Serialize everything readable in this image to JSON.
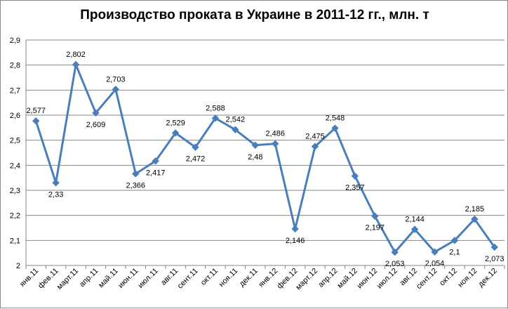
{
  "chart_data": {
    "type": "line",
    "title": "Производство проката в Украине в 2011-12 гг., млн. т",
    "xlabel": "",
    "ylabel": "",
    "ylim": [
      2,
      2.9
    ],
    "yticks": [
      "2",
      "2,1",
      "2,2",
      "2,3",
      "2,4",
      "2,5",
      "2,6",
      "2,7",
      "2,8",
      "2,9"
    ],
    "grid": "horizontal",
    "legend": "none",
    "line_color": "#4A7EBB",
    "categories": [
      "янв.11",
      "фев.11",
      "март.11",
      "апр.11",
      "май.11",
      "июн.11",
      "июл.11",
      "авг.11",
      "сент.11",
      "окт.11",
      "ноя.11",
      "дек.11",
      "янв.12",
      "фев.12",
      "март.12",
      "апр.12",
      "май.12",
      "июн.12",
      "июл.12",
      "авг.12",
      "сент.12",
      "окт.12",
      "ноя.12",
      "дек.12"
    ],
    "values": [
      2.577,
      2.33,
      2.802,
      2.609,
      2.703,
      2.366,
      2.417,
      2.529,
      2.472,
      2.588,
      2.542,
      2.48,
      2.486,
      2.146,
      2.475,
      2.548,
      2.357,
      2.197,
      2.053,
      2.144,
      2.054,
      2.1,
      2.185,
      2.073
    ],
    "data_labels": {
      "0": "2,577",
      "1": "2,33",
      "2": "2,802",
      "3": "2,609",
      "4": "2,703",
      "5": "2,366",
      "6": "2,417",
      "7": "2,529",
      "8": "2,472",
      "9": "2,588",
      "10": "2,542",
      "11": "2,48",
      "12": "2,486",
      "13": "2,146",
      "14": "2,475",
      "15": "2,548",
      "16": "2,357",
      "17": "2,197",
      "18": "2,053",
      "19": "2,144",
      "20": "2,054",
      "21": "2,1",
      "22": "2,185",
      "23": "2,073"
    }
  }
}
